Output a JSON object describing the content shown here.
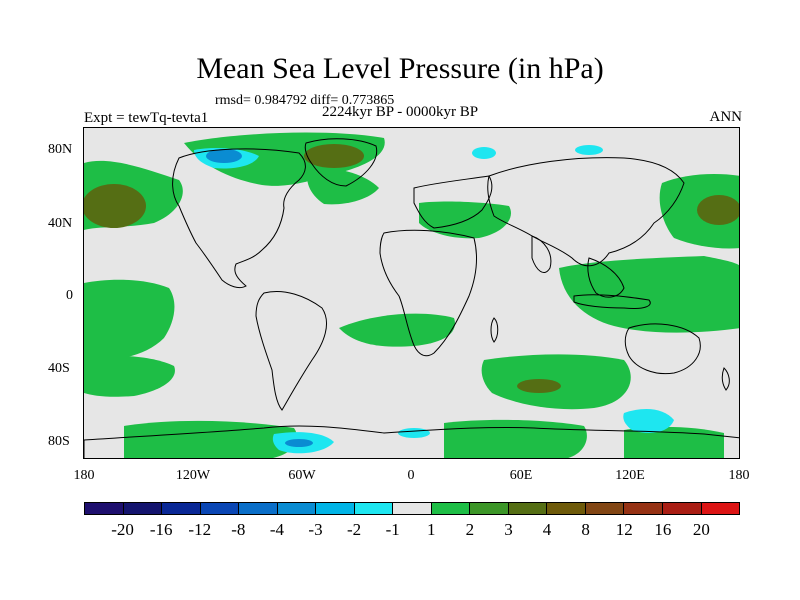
{
  "title": "Mean Sea Level Pressure (in hPa)",
  "stats": "rmsd= 0.984792 diff= 0.773865",
  "expt": "Expt = tewTq-tevta1",
  "period": "2224kyr BP - 0000kyr BP",
  "season": "ANN",
  "lat_labels": [
    "80N",
    "40N",
    "0",
    "40S",
    "80S"
  ],
  "lon_labels": [
    "180",
    "120W",
    "60W",
    "0",
    "60E",
    "120E",
    "180"
  ],
  "colorbar": {
    "colors": [
      "#1e0f6e",
      "#14146e",
      "#0a2896",
      "#0a46b4",
      "#0a6ec8",
      "#0a8cd2",
      "#00b4e6",
      "#1ee6f0",
      "#e6e6e6",
      "#1ebe46",
      "#3c9628",
      "#556e14",
      "#6e5a0a",
      "#824614",
      "#963214",
      "#aa1e14",
      "#dc1414"
    ],
    "labels": [
      "-20",
      "-16",
      "-12",
      "-8",
      "-4",
      "-3",
      "-2",
      "-1",
      "1",
      "2",
      "3",
      "4",
      "8",
      "12",
      "16",
      "20"
    ]
  },
  "map_colors": {
    "background": "#e6e6e6",
    "positive_1_2": "#1ebe46",
    "positive_3_4": "#556e14",
    "negative_1_2": "#1ee6f0",
    "negative_3_4": "#0a8cd2"
  }
}
